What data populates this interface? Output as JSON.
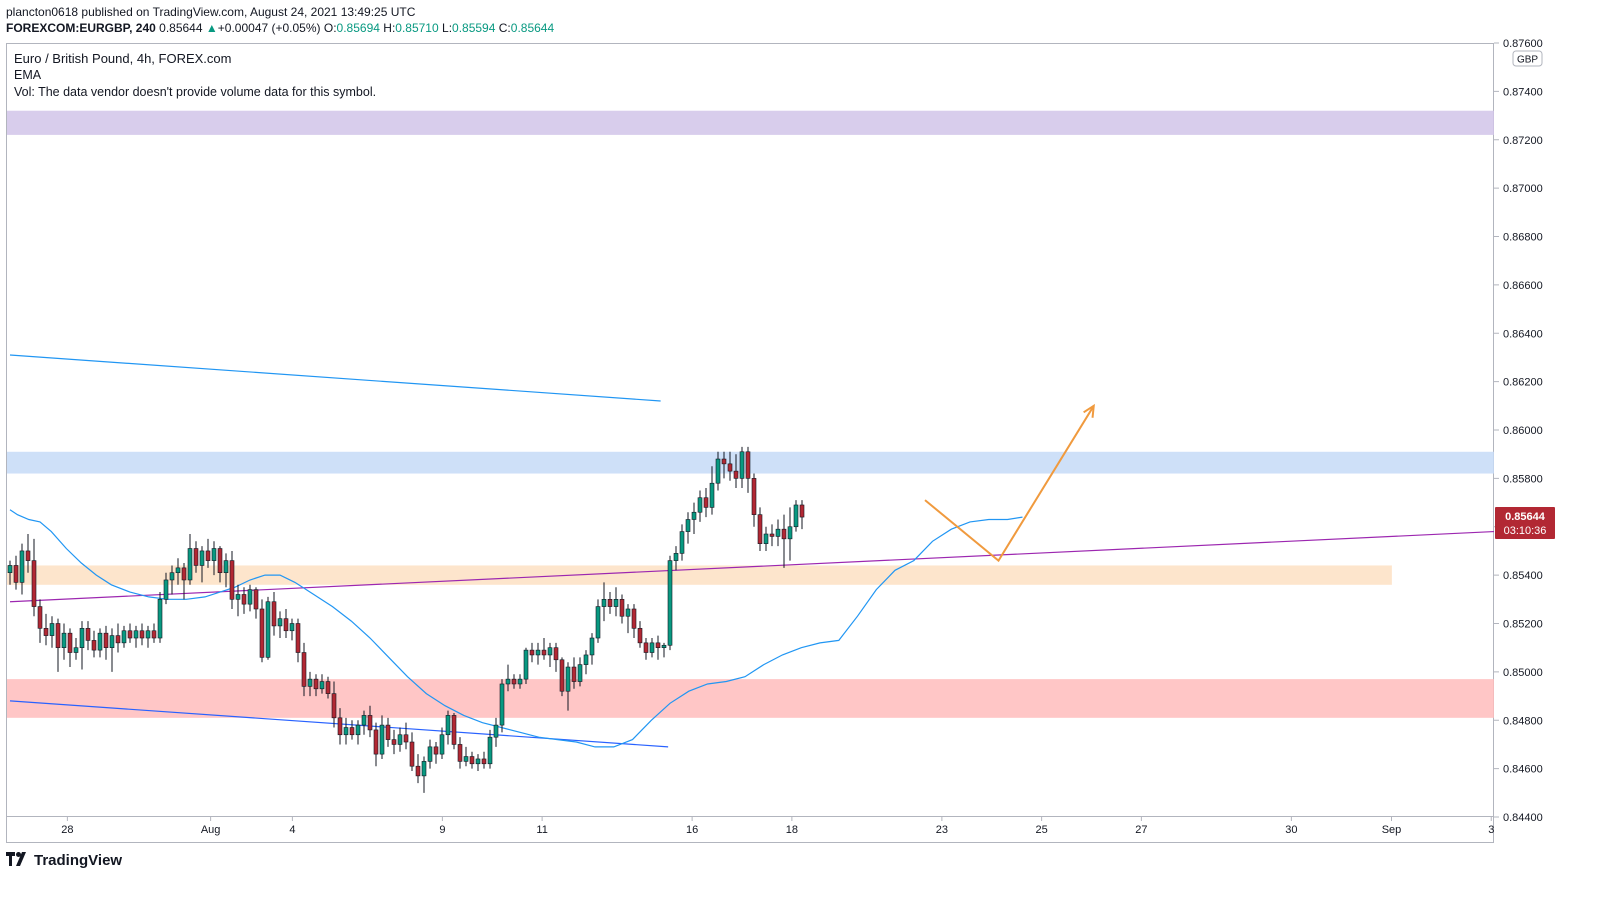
{
  "header": {
    "publisher_line": "plancton0618 published on TradingView.com, August 24, 2021 13:49:25 UTC",
    "symbol": "FOREXCOM:EURGBP, 240",
    "last": "0.85644",
    "change": "+0.00047 (+0.05%)",
    "o_label": "O:",
    "o_value": "0.85694",
    "h_label": "H:",
    "h_value": "0.85710",
    "l_label": "L:",
    "l_value": "0.85594",
    "c_label": "C:",
    "c_value": "0.85644"
  },
  "legend": {
    "title": "Euro / British Pound, 4h, FOREX.com",
    "ema": "EMA",
    "vol": "Vol: The data vendor doesn't provide volume data for this symbol."
  },
  "currency_badge": "GBP",
  "price_tag": {
    "price": "0.85644",
    "countdown": "03:10:36"
  },
  "brand": "TradingView",
  "colors": {
    "up": "#089981",
    "down": "#b22833",
    "ema": "#2196f3",
    "trend_purple": "#9c27b0",
    "arrow": "#f09a3e"
  },
  "chart_data": {
    "type": "candlestick",
    "symbol": "FOREXCOM:EURGBP",
    "interval": "4h",
    "ylim": [
      0.844,
      0.876
    ],
    "y_ticks": [
      "0.84400",
      "0.84600",
      "0.84800",
      "0.85000",
      "0.85200",
      "0.85400",
      "0.85600",
      "0.85800",
      "0.86000",
      "0.86200",
      "0.86400",
      "0.86600",
      "0.86800",
      "0.87000",
      "0.87200",
      "0.87400",
      "0.87600"
    ],
    "x_ticks": [
      {
        "label": "28",
        "pos": 1.53
      },
      {
        "label": "Aug",
        "pos": 5.35
      },
      {
        "label": "4",
        "pos": 7.53
      },
      {
        "label": "9",
        "pos": 11.53
      },
      {
        "label": "11",
        "pos": 14.19
      },
      {
        "label": "16",
        "pos": 18.19
      },
      {
        "label": "18",
        "pos": 20.85
      },
      {
        "label": "23",
        "pos": 24.85
      },
      {
        "label": "25",
        "pos": 27.51
      },
      {
        "label": "27",
        "pos": 30.17
      },
      {
        "label": "30",
        "pos": 34.17
      },
      {
        "label": "Sep",
        "pos": 36.84
      },
      {
        "label": "3",
        "pos": 39.5
      }
    ],
    "zones": [
      {
        "name": "purple-zone",
        "from": 0.8722,
        "to": 0.8732,
        "color": "#d1c4e9",
        "x_end": 40.19
      },
      {
        "name": "blue-zone",
        "from": 0.8582,
        "to": 0.8591,
        "color": "#c5daf7",
        "x_end": 40.19
      },
      {
        "name": "orange-zone",
        "from": 0.8536,
        "to": 0.8544,
        "color": "#fde1c3",
        "x_end": 36.85
      },
      {
        "name": "red-zone",
        "from": 0.8481,
        "to": 0.8497,
        "color": "#ffbcbc",
        "x_end": 40.19
      }
    ],
    "lines": [
      {
        "name": "upper-blue-trendline",
        "color": "#2196f3",
        "points": [
          [
            0,
            0.8631
          ],
          [
            17.35,
            0.8612
          ]
        ]
      },
      {
        "name": "lower-blue-trendline",
        "color": "#2962ff",
        "points": [
          [
            0,
            0.8488
          ],
          [
            17.55,
            0.8469
          ]
        ]
      },
      {
        "name": "purple-trendline",
        "color": "#9c27b0",
        "points": [
          [
            0,
            0.8529
          ],
          [
            40.19,
            0.8558
          ]
        ]
      }
    ],
    "projection": {
      "name": "orange-projection",
      "color": "#f09a3e",
      "points": [
        [
          24.4,
          0.8571
        ],
        [
          26.36,
          0.8546
        ],
        [
          28.9,
          0.861
        ]
      ]
    },
    "ema": [
      [
        0,
        0.8567
      ],
      [
        0.2,
        0.8565
      ],
      [
        0.5,
        0.8563
      ],
      [
        0.8,
        0.8562
      ],
      [
        1.1,
        0.8558
      ],
      [
        1.5,
        0.8551
      ],
      [
        1.9,
        0.8545
      ],
      [
        2.3,
        0.854
      ],
      [
        2.7,
        0.8536
      ],
      [
        3.2,
        0.8533
      ],
      [
        3.7,
        0.8531
      ],
      [
        4.2,
        0.853
      ],
      [
        4.7,
        0.853
      ],
      [
        5.2,
        0.8531
      ],
      [
        5.6,
        0.8533
      ],
      [
        6.0,
        0.8535
      ],
      [
        6.4,
        0.8538
      ],
      [
        6.8,
        0.854
      ],
      [
        7.2,
        0.854
      ],
      [
        7.6,
        0.8537
      ],
      [
        8.1,
        0.8532
      ],
      [
        8.6,
        0.8527
      ],
      [
        9.1,
        0.8521
      ],
      [
        9.6,
        0.8514
      ],
      [
        10.1,
        0.8506
      ],
      [
        10.6,
        0.8498
      ],
      [
        11.1,
        0.8491
      ],
      [
        11.6,
        0.8486
      ],
      [
        12.1,
        0.8482
      ],
      [
        12.6,
        0.8479
      ],
      [
        13.1,
        0.8477
      ],
      [
        13.6,
        0.8475
      ],
      [
        14.1,
        0.8473
      ],
      [
        14.6,
        0.8472
      ],
      [
        15.1,
        0.8471
      ],
      [
        15.6,
        0.8469
      ],
      [
        16.1,
        0.8469
      ],
      [
        16.6,
        0.8472
      ],
      [
        17.1,
        0.848
      ],
      [
        17.6,
        0.8487
      ],
      [
        18.1,
        0.8492
      ],
      [
        18.6,
        0.8495
      ],
      [
        19.1,
        0.8496
      ],
      [
        19.6,
        0.8498
      ],
      [
        20.1,
        0.8503
      ],
      [
        20.6,
        0.8507
      ],
      [
        21.1,
        0.851
      ],
      [
        21.6,
        0.8512
      ],
      [
        22.1,
        0.8513
      ],
      [
        22.6,
        0.8523
      ],
      [
        23.1,
        0.8534
      ],
      [
        23.6,
        0.8542
      ],
      [
        24.1,
        0.8546
      ],
      [
        24.6,
        0.8554
      ],
      [
        25.1,
        0.8559
      ],
      [
        25.6,
        0.8562
      ],
      [
        26.1,
        0.8563
      ],
      [
        26.6,
        0.8563
      ],
      [
        27.0,
        0.8564
      ]
    ],
    "candles": [
      {
        "o": 0.8541,
        "h": 0.8546,
        "l": 0.8536,
        "c": 0.8544
      },
      {
        "o": 0.8544,
        "h": 0.8548,
        "l": 0.8534,
        "c": 0.8537
      },
      {
        "o": 0.8537,
        "h": 0.8553,
        "l": 0.8532,
        "c": 0.855
      },
      {
        "o": 0.855,
        "h": 0.8557,
        "l": 0.8541,
        "c": 0.8546
      },
      {
        "o": 0.8546,
        "h": 0.8555,
        "l": 0.8523,
        "c": 0.8527
      },
      {
        "o": 0.8527,
        "h": 0.853,
        "l": 0.8512,
        "c": 0.8518
      },
      {
        "o": 0.8518,
        "h": 0.8524,
        "l": 0.8511,
        "c": 0.8515
      },
      {
        "o": 0.8515,
        "h": 0.8523,
        "l": 0.851,
        "c": 0.852
      },
      {
        "o": 0.852,
        "h": 0.8522,
        "l": 0.85,
        "c": 0.851
      },
      {
        "o": 0.851,
        "h": 0.852,
        "l": 0.8505,
        "c": 0.8516
      },
      {
        "o": 0.8516,
        "h": 0.8518,
        "l": 0.8502,
        "c": 0.8508
      },
      {
        "o": 0.8508,
        "h": 0.8514,
        "l": 0.8505,
        "c": 0.851
      },
      {
        "o": 0.851,
        "h": 0.8521,
        "l": 0.8501,
        "c": 0.8518
      },
      {
        "o": 0.8518,
        "h": 0.8521,
        "l": 0.8509,
        "c": 0.8513
      },
      {
        "o": 0.8513,
        "h": 0.8517,
        "l": 0.8506,
        "c": 0.8509
      },
      {
        "o": 0.8509,
        "h": 0.8518,
        "l": 0.8506,
        "c": 0.8516
      },
      {
        "o": 0.8516,
        "h": 0.8519,
        "l": 0.8505,
        "c": 0.851
      },
      {
        "o": 0.851,
        "h": 0.8518,
        "l": 0.85,
        "c": 0.8515
      },
      {
        "o": 0.8515,
        "h": 0.852,
        "l": 0.8508,
        "c": 0.8512
      },
      {
        "o": 0.8512,
        "h": 0.8519,
        "l": 0.851,
        "c": 0.8517
      },
      {
        "o": 0.8517,
        "h": 0.852,
        "l": 0.8512,
        "c": 0.8514
      },
      {
        "o": 0.8514,
        "h": 0.8519,
        "l": 0.851,
        "c": 0.8517
      },
      {
        "o": 0.8517,
        "h": 0.852,
        "l": 0.8511,
        "c": 0.8514
      },
      {
        "o": 0.8514,
        "h": 0.8519,
        "l": 0.851,
        "c": 0.8517
      },
      {
        "o": 0.8517,
        "h": 0.852,
        "l": 0.8512,
        "c": 0.8514
      },
      {
        "o": 0.8514,
        "h": 0.8533,
        "l": 0.8512,
        "c": 0.853
      },
      {
        "o": 0.853,
        "h": 0.8541,
        "l": 0.8528,
        "c": 0.8538
      },
      {
        "o": 0.8538,
        "h": 0.8544,
        "l": 0.8532,
        "c": 0.8541
      },
      {
        "o": 0.8541,
        "h": 0.8547,
        "l": 0.8536,
        "c": 0.8543
      },
      {
        "o": 0.8543,
        "h": 0.8545,
        "l": 0.853,
        "c": 0.8538
      },
      {
        "o": 0.8538,
        "h": 0.8557,
        "l": 0.8536,
        "c": 0.8551
      },
      {
        "o": 0.8551,
        "h": 0.8554,
        "l": 0.8541,
        "c": 0.8544
      },
      {
        "o": 0.8544,
        "h": 0.8552,
        "l": 0.8537,
        "c": 0.855
      },
      {
        "o": 0.855,
        "h": 0.8555,
        "l": 0.8543,
        "c": 0.8546
      },
      {
        "o": 0.8546,
        "h": 0.8554,
        "l": 0.854,
        "c": 0.8551
      },
      {
        "o": 0.8551,
        "h": 0.8552,
        "l": 0.8537,
        "c": 0.8541
      },
      {
        "o": 0.8541,
        "h": 0.8549,
        "l": 0.8535,
        "c": 0.8546
      },
      {
        "o": 0.8546,
        "h": 0.855,
        "l": 0.8526,
        "c": 0.853
      },
      {
        "o": 0.853,
        "h": 0.8536,
        "l": 0.8523,
        "c": 0.8532
      },
      {
        "o": 0.8532,
        "h": 0.8535,
        "l": 0.8524,
        "c": 0.8528
      },
      {
        "o": 0.8528,
        "h": 0.8536,
        "l": 0.8525,
        "c": 0.8534
      },
      {
        "o": 0.8534,
        "h": 0.8535,
        "l": 0.8522,
        "c": 0.8526
      },
      {
        "o": 0.8526,
        "h": 0.853,
        "l": 0.8504,
        "c": 0.8506
      },
      {
        "o": 0.8506,
        "h": 0.8531,
        "l": 0.8505,
        "c": 0.8529
      },
      {
        "o": 0.8529,
        "h": 0.8533,
        "l": 0.8515,
        "c": 0.8519
      },
      {
        "o": 0.8519,
        "h": 0.8525,
        "l": 0.8514,
        "c": 0.8522
      },
      {
        "o": 0.8522,
        "h": 0.8526,
        "l": 0.8514,
        "c": 0.8517
      },
      {
        "o": 0.8517,
        "h": 0.8522,
        "l": 0.8513,
        "c": 0.852
      },
      {
        "o": 0.852,
        "h": 0.8522,
        "l": 0.8504,
        "c": 0.8508
      },
      {
        "o": 0.8508,
        "h": 0.8512,
        "l": 0.849,
        "c": 0.8494
      },
      {
        "o": 0.8494,
        "h": 0.85,
        "l": 0.849,
        "c": 0.8497
      },
      {
        "o": 0.8497,
        "h": 0.8499,
        "l": 0.849,
        "c": 0.8493
      },
      {
        "o": 0.8493,
        "h": 0.8499,
        "l": 0.8491,
        "c": 0.8496
      },
      {
        "o": 0.8496,
        "h": 0.8498,
        "l": 0.8489,
        "c": 0.8491
      },
      {
        "o": 0.8491,
        "h": 0.8496,
        "l": 0.8477,
        "c": 0.8481
      },
      {
        "o": 0.8481,
        "h": 0.8485,
        "l": 0.847,
        "c": 0.8474
      },
      {
        "o": 0.8474,
        "h": 0.8481,
        "l": 0.847,
        "c": 0.8477
      },
      {
        "o": 0.8477,
        "h": 0.848,
        "l": 0.8472,
        "c": 0.8474
      },
      {
        "o": 0.8474,
        "h": 0.848,
        "l": 0.847,
        "c": 0.8478
      },
      {
        "o": 0.8478,
        "h": 0.8484,
        "l": 0.8474,
        "c": 0.8482
      },
      {
        "o": 0.8482,
        "h": 0.8486,
        "l": 0.8473,
        "c": 0.8476
      },
      {
        "o": 0.8476,
        "h": 0.8479,
        "l": 0.8461,
        "c": 0.8466
      },
      {
        "o": 0.8466,
        "h": 0.8482,
        "l": 0.8464,
        "c": 0.8478
      },
      {
        "o": 0.8478,
        "h": 0.8481,
        "l": 0.8469,
        "c": 0.8472
      },
      {
        "o": 0.8472,
        "h": 0.8476,
        "l": 0.8466,
        "c": 0.847
      },
      {
        "o": 0.847,
        "h": 0.8477,
        "l": 0.8467,
        "c": 0.8474
      },
      {
        "o": 0.8474,
        "h": 0.8479,
        "l": 0.8468,
        "c": 0.8471
      },
      {
        "o": 0.8471,
        "h": 0.8475,
        "l": 0.8459,
        "c": 0.8461
      },
      {
        "o": 0.8461,
        "h": 0.8466,
        "l": 0.8454,
        "c": 0.8457
      },
      {
        "o": 0.8457,
        "h": 0.8465,
        "l": 0.845,
        "c": 0.8463
      },
      {
        "o": 0.8463,
        "h": 0.8472,
        "l": 0.846,
        "c": 0.8469
      },
      {
        "o": 0.8469,
        "h": 0.8471,
        "l": 0.8462,
        "c": 0.8466
      },
      {
        "o": 0.8466,
        "h": 0.8477,
        "l": 0.8464,
        "c": 0.8474
      },
      {
        "o": 0.8474,
        "h": 0.8484,
        "l": 0.847,
        "c": 0.8482
      },
      {
        "o": 0.8482,
        "h": 0.8483,
        "l": 0.8468,
        "c": 0.847
      },
      {
        "o": 0.847,
        "h": 0.8473,
        "l": 0.846,
        "c": 0.8463
      },
      {
        "o": 0.8463,
        "h": 0.8469,
        "l": 0.8461,
        "c": 0.8465
      },
      {
        "o": 0.8465,
        "h": 0.8467,
        "l": 0.846,
        "c": 0.8462
      },
      {
        "o": 0.8462,
        "h": 0.8466,
        "l": 0.8459,
        "c": 0.8464
      },
      {
        "o": 0.8464,
        "h": 0.8467,
        "l": 0.846,
        "c": 0.8462
      },
      {
        "o": 0.8462,
        "h": 0.8476,
        "l": 0.846,
        "c": 0.8473
      },
      {
        "o": 0.8473,
        "h": 0.8481,
        "l": 0.8469,
        "c": 0.8478
      },
      {
        "o": 0.8478,
        "h": 0.8497,
        "l": 0.8475,
        "c": 0.8495
      },
      {
        "o": 0.8495,
        "h": 0.8503,
        "l": 0.8492,
        "c": 0.8497
      },
      {
        "o": 0.8497,
        "h": 0.8499,
        "l": 0.8493,
        "c": 0.8495
      },
      {
        "o": 0.8495,
        "h": 0.8499,
        "l": 0.8493,
        "c": 0.8497
      },
      {
        "o": 0.8497,
        "h": 0.851,
        "l": 0.8495,
        "c": 0.8509
      },
      {
        "o": 0.8509,
        "h": 0.8512,
        "l": 0.8504,
        "c": 0.8507
      },
      {
        "o": 0.8507,
        "h": 0.8512,
        "l": 0.8503,
        "c": 0.8509
      },
      {
        "o": 0.8509,
        "h": 0.8514,
        "l": 0.8505,
        "c": 0.8507
      },
      {
        "o": 0.8507,
        "h": 0.8512,
        "l": 0.8502,
        "c": 0.851
      },
      {
        "o": 0.851,
        "h": 0.8512,
        "l": 0.85,
        "c": 0.8505
      },
      {
        "o": 0.8505,
        "h": 0.8506,
        "l": 0.849,
        "c": 0.8492
      },
      {
        "o": 0.8492,
        "h": 0.8504,
        "l": 0.8484,
        "c": 0.8502
      },
      {
        "o": 0.8502,
        "h": 0.8506,
        "l": 0.8493,
        "c": 0.8496
      },
      {
        "o": 0.8496,
        "h": 0.8506,
        "l": 0.8494,
        "c": 0.8503
      },
      {
        "o": 0.8503,
        "h": 0.8509,
        "l": 0.8499,
        "c": 0.8507
      },
      {
        "o": 0.8507,
        "h": 0.8516,
        "l": 0.8503,
        "c": 0.8514
      },
      {
        "o": 0.8514,
        "h": 0.853,
        "l": 0.8512,
        "c": 0.8527
      },
      {
        "o": 0.8527,
        "h": 0.8537,
        "l": 0.8521,
        "c": 0.853
      },
      {
        "o": 0.853,
        "h": 0.8533,
        "l": 0.8524,
        "c": 0.8527
      },
      {
        "o": 0.8527,
        "h": 0.8535,
        "l": 0.8523,
        "c": 0.853
      },
      {
        "o": 0.853,
        "h": 0.8532,
        "l": 0.852,
        "c": 0.8523
      },
      {
        "o": 0.8523,
        "h": 0.8528,
        "l": 0.8516,
        "c": 0.8526
      },
      {
        "o": 0.8526,
        "h": 0.8528,
        "l": 0.8514,
        "c": 0.8518
      },
      {
        "o": 0.8518,
        "h": 0.8521,
        "l": 0.851,
        "c": 0.8512
      },
      {
        "o": 0.8512,
        "h": 0.8514,
        "l": 0.8505,
        "c": 0.8508
      },
      {
        "o": 0.8508,
        "h": 0.8514,
        "l": 0.8506,
        "c": 0.8512
      },
      {
        "o": 0.8512,
        "h": 0.8515,
        "l": 0.8505,
        "c": 0.851
      },
      {
        "o": 0.851,
        "h": 0.8512,
        "l": 0.8506,
        "c": 0.8511
      },
      {
        "o": 0.8511,
        "h": 0.8548,
        "l": 0.8509,
        "c": 0.8546
      },
      {
        "o": 0.8546,
        "h": 0.8552,
        "l": 0.8542,
        "c": 0.8549
      },
      {
        "o": 0.8549,
        "h": 0.8561,
        "l": 0.8546,
        "c": 0.8558
      },
      {
        "o": 0.8558,
        "h": 0.8566,
        "l": 0.8553,
        "c": 0.8563
      },
      {
        "o": 0.8563,
        "h": 0.857,
        "l": 0.8557,
        "c": 0.8566
      },
      {
        "o": 0.8566,
        "h": 0.8575,
        "l": 0.8562,
        "c": 0.8572
      },
      {
        "o": 0.8572,
        "h": 0.8576,
        "l": 0.8564,
        "c": 0.8568
      },
      {
        "o": 0.8568,
        "h": 0.8585,
        "l": 0.8565,
        "c": 0.8578
      },
      {
        "o": 0.8578,
        "h": 0.8591,
        "l": 0.8575,
        "c": 0.8588
      },
      {
        "o": 0.8588,
        "h": 0.8591,
        "l": 0.858,
        "c": 0.8586
      },
      {
        "o": 0.8586,
        "h": 0.8591,
        "l": 0.8579,
        "c": 0.8583
      },
      {
        "o": 0.8583,
        "h": 0.859,
        "l": 0.8576,
        "c": 0.858
      },
      {
        "o": 0.858,
        "h": 0.8593,
        "l": 0.8576,
        "c": 0.8591
      },
      {
        "o": 0.8591,
        "h": 0.8593,
        "l": 0.8574,
        "c": 0.858
      },
      {
        "o": 0.858,
        "h": 0.8582,
        "l": 0.856,
        "c": 0.8565
      },
      {
        "o": 0.8565,
        "h": 0.8568,
        "l": 0.855,
        "c": 0.8553
      },
      {
        "o": 0.8553,
        "h": 0.856,
        "l": 0.855,
        "c": 0.8557
      },
      {
        "o": 0.8557,
        "h": 0.8561,
        "l": 0.8552,
        "c": 0.8556
      },
      {
        "o": 0.8556,
        "h": 0.8563,
        "l": 0.8552,
        "c": 0.8559
      },
      {
        "o": 0.8559,
        "h": 0.8565,
        "l": 0.8543,
        "c": 0.8555
      },
      {
        "o": 0.8555,
        "h": 0.8568,
        "l": 0.8546,
        "c": 0.856
      },
      {
        "o": 0.856,
        "h": 0.8571,
        "l": 0.8558,
        "c": 0.8569
      },
      {
        "o": 0.8569,
        "h": 0.8571,
        "l": 0.8559,
        "c": 0.8564
      }
    ]
  }
}
